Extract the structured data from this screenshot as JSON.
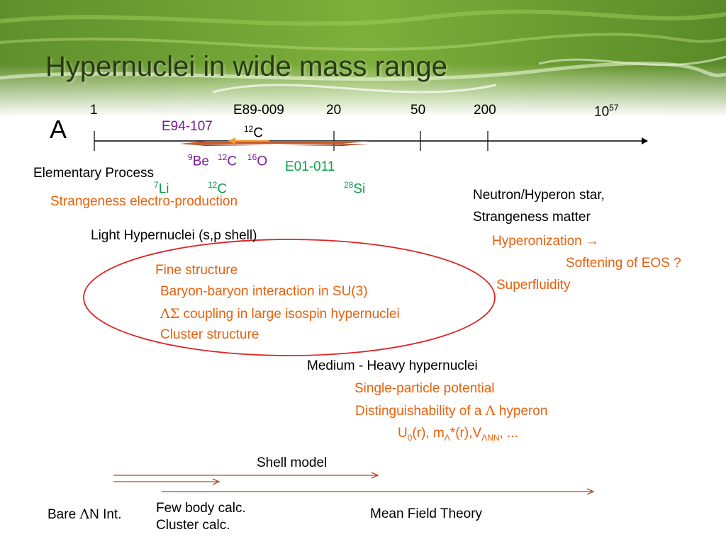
{
  "title": "Hypernuclei in wide mass range",
  "axis": {
    "label": "A",
    "ticks": [
      "1",
      "E89-009",
      "20",
      "50",
      "200"
    ],
    "tick_last_base": "10",
    "tick_last_exp": "57"
  },
  "experiments": {
    "e94": "E94-107",
    "c12_sup": "12",
    "c12_el": "C",
    "e01": "E01-011",
    "be_sup": "9",
    "be_el": "Be",
    "c12b_sup": "12",
    "c12b_el": "C",
    "o_sup": "16",
    "o_el": "O",
    "li_sup": "7",
    "li_el": "Li",
    "c12c_sup": "12",
    "c12c_el": "C",
    "si_sup": "28",
    "si_el": "Si"
  },
  "elementary": {
    "heading": "Elementary Process",
    "sub": "Strangeness electro-production"
  },
  "light": {
    "heading": "Light Hypernuclei (s,p shell)",
    "items": [
      "Fine structure",
      "Baryon-baryon interaction in SU(3)",
      "coupling in large isospin hypernuclei",
      "Cluster structure"
    ],
    "symbol": "ΛΣ"
  },
  "neutron": {
    "line1": "Neutron/Hyperon star,",
    "line2": "Strangeness matter",
    "hyper": "Hyperonization",
    "arrow": "→",
    "soft": "Softening of EOS ?",
    "super": "Superfluidity"
  },
  "medium": {
    "heading": "Medium - Heavy hypernuclei",
    "item1": "Single-particle potential",
    "item2_pre": "Distinguishability of a",
    "item2_sym": "Λ",
    "item2_post": "hyperon",
    "u": "U",
    "u_sub": "0",
    "u_mid": "(r), m",
    "m_sub": "Λ",
    "m_mid": "*(r),V",
    "v_sub": "ΛNN",
    "u_end": ", ..."
  },
  "theory": {
    "shell": "Shell model",
    "bare_pre": "Bare",
    "bare_sym": "Λ",
    "bare_post": "N Int.",
    "few": "Few body calc.",
    "cluster": "Cluster calc.",
    "mean": "Mean Field Theory"
  },
  "colors": {
    "banner_dark": "#3e6a1a",
    "banner_light": "#8fbf4a",
    "orange": "#e8600c",
    "purple": "#7a1a9a",
    "green": "#0aa048",
    "ellipse": "#dd2222",
    "arrow": "#b8482a"
  }
}
